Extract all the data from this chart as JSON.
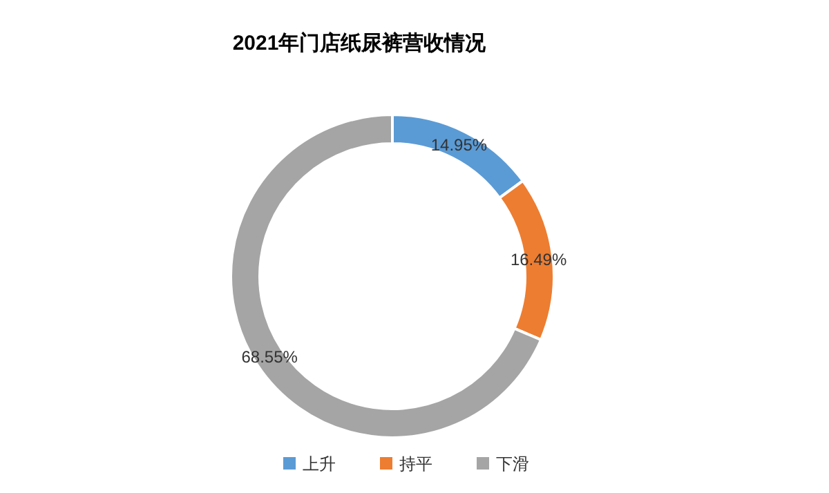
{
  "chart_data": {
    "type": "donut",
    "title": "2021年门店纸尿裤营收情况",
    "categories": [
      "上升",
      "持平",
      "下滑"
    ],
    "values": [
      14.95,
      16.49,
      68.55
    ],
    "colors": [
      "#5b9bd5",
      "#ed7d31",
      "#a5a5a5"
    ],
    "value_labels": [
      "14.95%",
      "16.49%",
      "68.55%"
    ],
    "legend": "bottom"
  }
}
